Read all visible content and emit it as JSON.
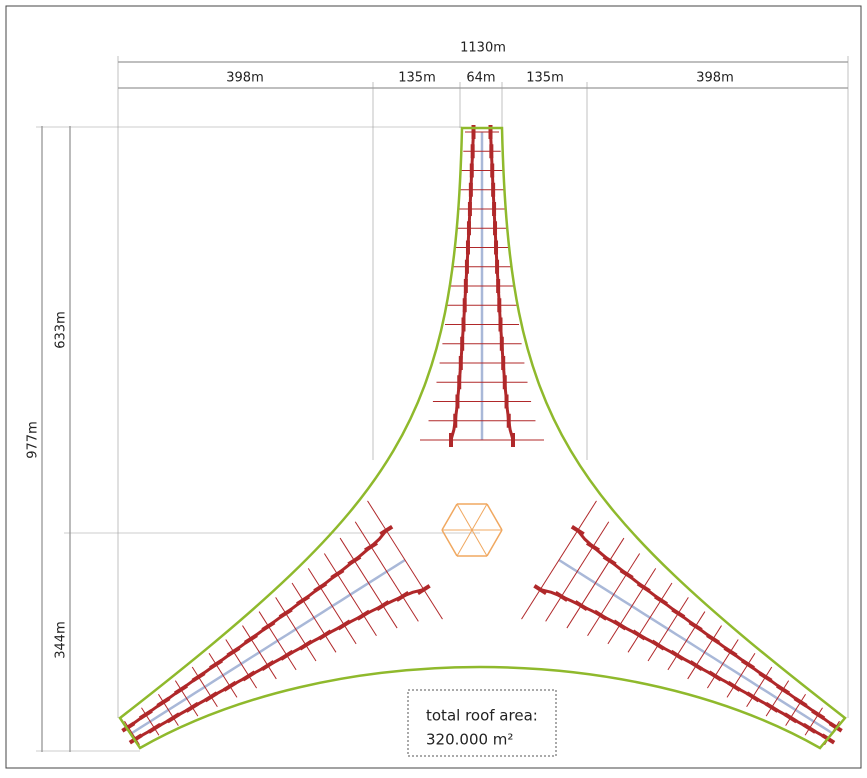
{
  "dimensions": {
    "total_width": "1130m",
    "widths": [
      "398m",
      "135m",
      "64m",
      "135m",
      "398m"
    ],
    "total_height": "977m",
    "heights": [
      "633m",
      "344m"
    ]
  },
  "note": {
    "label": "total roof area:",
    "value": "320.000 m²"
  }
}
